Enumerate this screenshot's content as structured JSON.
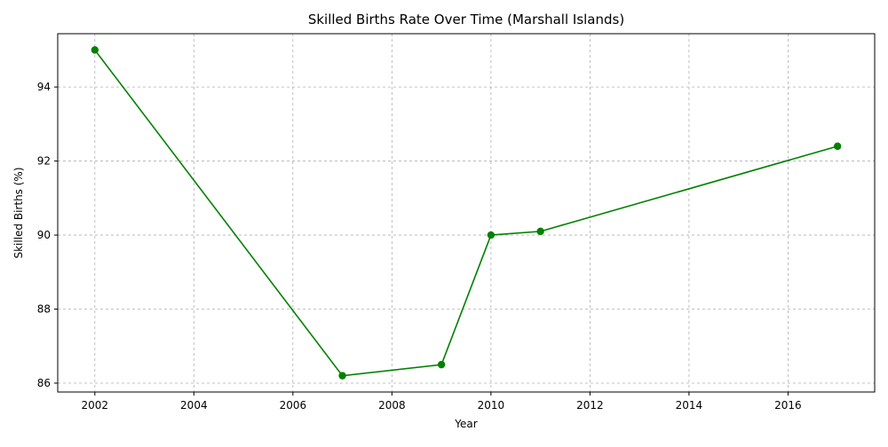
{
  "chart_data": {
    "type": "line",
    "title": "Skilled Births Rate Over Time (Marshall Islands)",
    "xlabel": "Year",
    "ylabel": "Skilled Births (%)",
    "x": [
      2002,
      2007,
      2009,
      2010,
      2011,
      2017
    ],
    "series": [
      {
        "values": [
          95.0,
          86.2,
          86.5,
          90.0,
          90.1,
          92.4
        ],
        "color": "#008000",
        "marker": "circle",
        "linestyle": "solid"
      }
    ],
    "xlim": [
      2001.25,
      2017.75
    ],
    "ylim": [
      85.76,
      95.44
    ],
    "xticks": [
      2002,
      2004,
      2006,
      2008,
      2010,
      2012,
      2014,
      2016
    ],
    "yticks": [
      86,
      88,
      90,
      92,
      94
    ],
    "grid": true,
    "grid_style": "dashed",
    "legend": "none"
  }
}
